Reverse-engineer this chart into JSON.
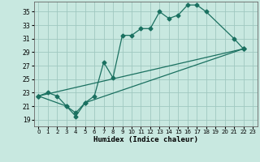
{
  "xlabel": "Humidex (Indice chaleur)",
  "xlim": [
    -0.5,
    23.5
  ],
  "ylim": [
    18.0,
    36.5
  ],
  "xticks": [
    0,
    1,
    2,
    3,
    4,
    5,
    6,
    7,
    8,
    9,
    10,
    11,
    12,
    13,
    14,
    15,
    16,
    17,
    18,
    19,
    20,
    21,
    22,
    23
  ],
  "yticks": [
    19,
    21,
    23,
    25,
    27,
    29,
    31,
    33,
    35
  ],
  "background_color": "#c8e8e0",
  "grid_color": "#a0c8c0",
  "line_color": "#1a7060",
  "curve_x": [
    0,
    1,
    2,
    3,
    4,
    5,
    6,
    7,
    8,
    9,
    10,
    11,
    12,
    13,
    14,
    15,
    16,
    17,
    18,
    21,
    22
  ],
  "curve_y": [
    22.5,
    23.0,
    22.5,
    21.0,
    20.0,
    21.5,
    22.5,
    27.5,
    25.2,
    31.5,
    31.5,
    32.5,
    32.5,
    35.0,
    34.0,
    34.5,
    36.0,
    36.0,
    35.0,
    31.0,
    29.5
  ],
  "line2_x": [
    0,
    22
  ],
  "line2_y": [
    22.5,
    29.5
  ],
  "line3_x": [
    0,
    3,
    4,
    5,
    22
  ],
  "line3_y": [
    22.5,
    21.0,
    19.5,
    21.5,
    29.5
  ]
}
